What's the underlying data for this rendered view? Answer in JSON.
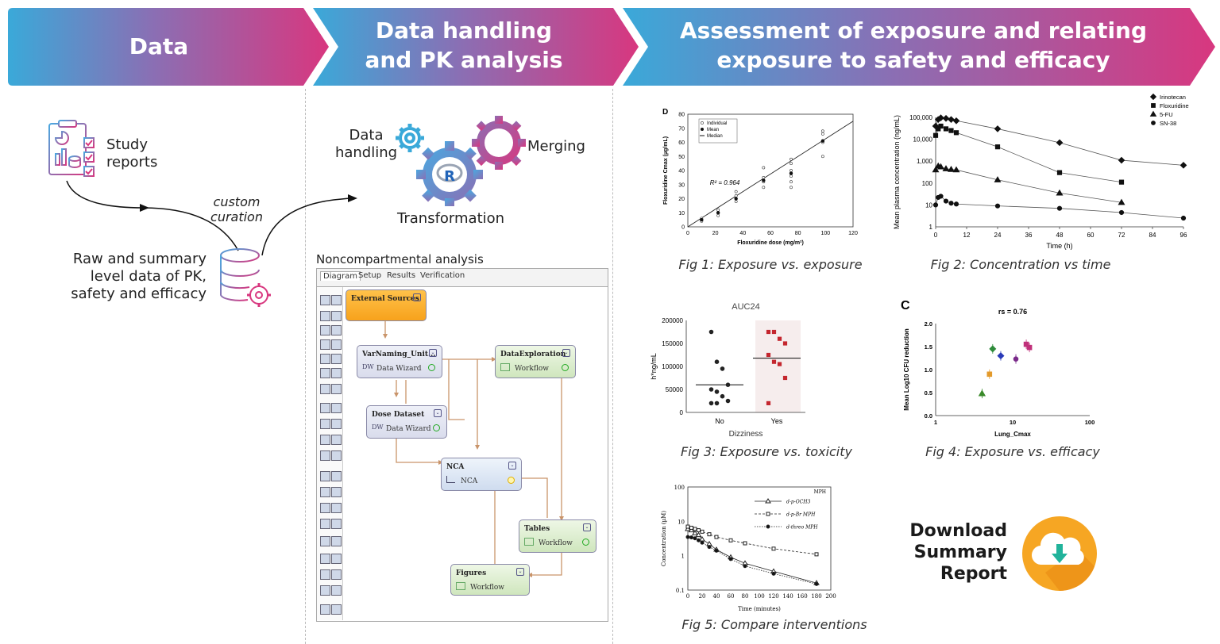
{
  "banner": {
    "section1": "Data",
    "section2_line1": "Data handling",
    "section2_line2": "and PK analysis",
    "section3_line1": "Assessment of exposure and relating",
    "section3_line2": "exposure to safety and efficacy",
    "colors": {
      "start": "#3aa9d9",
      "mid": "#8a6fb4",
      "end": "#d8377f"
    }
  },
  "data_column": {
    "study_reports": [
      "Study",
      "reports"
    ],
    "custom_curation": [
      "custom",
      "curation"
    ],
    "raw_data": [
      "Raw and summary",
      "level data of PK,",
      "safety and efficacy"
    ]
  },
  "handling_column": {
    "data_handling": [
      "Data",
      "handling"
    ],
    "merging": "Merging",
    "transformation": "Transformation",
    "r_logo": "R",
    "nca_title": "Noncompartmental analysis",
    "tabs": [
      "Diagram",
      "Setup",
      "Results",
      "Verification"
    ],
    "nodes": {
      "external": {
        "title": "External Sources"
      },
      "varnaming": {
        "title": "VarNaming_Unit...",
        "sub": "Data Wizard",
        "icon": "DW"
      },
      "dataexplore": {
        "title": "DataExploration",
        "sub": "Workflow"
      },
      "dose": {
        "title": "Dose Dataset",
        "sub": "Data Wizard",
        "icon": "DW"
      },
      "nca": {
        "title": "NCA",
        "sub": "NCA"
      },
      "tables": {
        "title": "Tables",
        "sub": "Workflow"
      },
      "figures": {
        "title": "Figures",
        "sub": "Workflow"
      }
    }
  },
  "captions": {
    "fig1": "Fig 1: Exposure vs. exposure",
    "fig2": "Fig 2: Concentration vs time",
    "fig3": "Fig 3: Exposure vs. toxicity",
    "fig4": "Fig 4: Exposure vs. efficacy",
    "fig5": "Fig 5: Compare interventions"
  },
  "download": [
    "Download",
    "Summary",
    "Report"
  ],
  "chart_data": [
    {
      "type": "scatter",
      "panel_label": "D",
      "xlabel": "Floxuridine dose (mg/m²)",
      "ylabel": "Floxuridine Cmax (µg/mL)",
      "xlim": [
        0,
        120
      ],
      "ylim": [
        0,
        80
      ],
      "xticks": [
        0,
        20,
        40,
        60,
        80,
        100,
        120
      ],
      "yticks": [
        0,
        10,
        20,
        30,
        40,
        50,
        60,
        70,
        80
      ],
      "annotation": "R² = 0.964",
      "legend": [
        "Individual",
        "Mean",
        "Median"
      ],
      "individual_points": [
        [
          10,
          4
        ],
        [
          10,
          6
        ],
        [
          22,
          8
        ],
        [
          22,
          10
        ],
        [
          22,
          12
        ],
        [
          35,
          18
        ],
        [
          35,
          22
        ],
        [
          35,
          25
        ],
        [
          55,
          28
        ],
        [
          55,
          32
        ],
        [
          55,
          35
        ],
        [
          55,
          42
        ],
        [
          75,
          28
        ],
        [
          75,
          32
        ],
        [
          75,
          36
        ],
        [
          75,
          40
        ],
        [
          75,
          45
        ],
        [
          75,
          48
        ],
        [
          98,
          50
        ],
        [
          98,
          60
        ],
        [
          98,
          66
        ],
        [
          98,
          68
        ]
      ],
      "mean_points": [
        [
          10,
          5
        ],
        [
          22,
          10
        ],
        [
          35,
          20
        ],
        [
          55,
          33
        ],
        [
          75,
          38
        ],
        [
          98,
          61
        ]
      ],
      "fit_line": [
        [
          0,
          0
        ],
        [
          120,
          75
        ]
      ]
    },
    {
      "type": "line",
      "xlabel": "Time (h)",
      "ylabel": "Mean plasma concentration (ng/mL)",
      "xticks": [
        0,
        12,
        24,
        36,
        48,
        60,
        72,
        84,
        96
      ],
      "yticks": [
        "1",
        "10",
        "100",
        "1,000",
        "10,000",
        "100,000"
      ],
      "ylog": true,
      "series": [
        {
          "name": "Irinotecan",
          "marker": "diamond",
          "points": [
            [
              0,
              40000
            ],
            [
              1,
              80000
            ],
            [
              2,
              95000
            ],
            [
              4,
              90000
            ],
            [
              6,
              80000
            ],
            [
              8,
              70000
            ],
            [
              24,
              30000
            ],
            [
              48,
              7000
            ],
            [
              72,
              1100
            ],
            [
              96,
              650
            ]
          ]
        },
        {
          "name": "Floxuridine",
          "marker": "square",
          "points": [
            [
              0,
              15000
            ],
            [
              1,
              30000
            ],
            [
              2,
              40000
            ],
            [
              4,
              30000
            ],
            [
              6,
              25000
            ],
            [
              8,
              20000
            ],
            [
              24,
              4500
            ],
            [
              48,
              300
            ],
            [
              72,
              110
            ]
          ]
        },
        {
          "name": "5-FU",
          "marker": "triangle",
          "points": [
            [
              0,
              400
            ],
            [
              1,
              600
            ],
            [
              2,
              550
            ],
            [
              4,
              450
            ],
            [
              6,
              420
            ],
            [
              8,
              400
            ],
            [
              24,
              140
            ],
            [
              48,
              35
            ],
            [
              72,
              13
            ]
          ]
        },
        {
          "name": "SN-38",
          "marker": "circle",
          "points": [
            [
              0,
              10
            ],
            [
              1,
              22
            ],
            [
              2,
              25
            ],
            [
              4,
              15
            ],
            [
              6,
              12
            ],
            [
              8,
              11
            ],
            [
              24,
              9
            ],
            [
              48,
              7
            ],
            [
              72,
              4.5
            ],
            [
              96,
              2.5
            ]
          ]
        }
      ]
    },
    {
      "type": "scatter",
      "title": "AUC24",
      "xlabel": "Dizziness",
      "ylabel": "h*ng/mL",
      "categories": [
        "No",
        "Yes"
      ],
      "ylim": [
        0,
        200000
      ],
      "yticks": [
        "0",
        "50000",
        "100000",
        "150000",
        "200000"
      ],
      "series": [
        {
          "name": "No",
          "values": [
            175000,
            110000,
            95000,
            60000,
            50000,
            45000,
            35000,
            25000,
            20000,
            20000
          ],
          "median": 60000
        },
        {
          "name": "Yes",
          "values": [
            175000,
            175000,
            160000,
            150000,
            125000,
            110000,
            105000,
            75000,
            20000
          ],
          "median": 118000
        }
      ]
    },
    {
      "type": "scatter",
      "panel_label": "C",
      "annotation": "rs = 0.76",
      "xlabel": "Lung_Cmax",
      "ylabel": "Mean Log10 CFU reduction",
      "xlog": true,
      "xticks": [
        "1",
        "10",
        "100"
      ],
      "yticks": [
        "0.0",
        "0.5",
        "1.0",
        "1.5",
        "2.0"
      ],
      "points": [
        {
          "x": 4,
          "y": 0.48,
          "color": "#3a8a2a",
          "marker": "triangle"
        },
        {
          "x": 5,
          "y": 0.9,
          "color": "#e39a2b",
          "marker": "square"
        },
        {
          "x": 5.5,
          "y": 1.45,
          "color": "#2e8b3a",
          "marker": "diamond"
        },
        {
          "x": 7,
          "y": 1.3,
          "color": "#2a3ab8",
          "marker": "diamond"
        },
        {
          "x": 11,
          "y": 1.23,
          "color": "#7a2a8a",
          "marker": "circle"
        },
        {
          "x": 15,
          "y": 1.55,
          "color": "#c0307a",
          "marker": "square"
        },
        {
          "x": 16.5,
          "y": 1.48,
          "color": "#c0307a",
          "marker": "square"
        }
      ]
    },
    {
      "type": "line",
      "xlabel": "Time (minutes)",
      "ylabel": "Concentration (µM)",
      "ylog": true,
      "xticks": [
        0,
        20,
        40,
        60,
        80,
        100,
        120,
        140,
        160,
        180,
        200
      ],
      "yticks": [
        "0.1",
        "1",
        "10",
        "100"
      ],
      "legend_title": "MPH",
      "series": [
        {
          "name": "d-p-OCH3",
          "marker": "triangle",
          "points": [
            [
              0,
              6
            ],
            [
              5,
              5.5
            ],
            [
              10,
              4.5
            ],
            [
              15,
              4
            ],
            [
              20,
              3
            ],
            [
              30,
              2.2
            ],
            [
              40,
              1.5
            ],
            [
              60,
              0.9
            ],
            [
              80,
              0.6
            ],
            [
              120,
              0.35
            ],
            [
              180,
              0.16
            ]
          ]
        },
        {
          "name": "d-p-Br MPH",
          "marker": "square",
          "points": [
            [
              0,
              7
            ],
            [
              5,
              6.5
            ],
            [
              10,
              6
            ],
            [
              15,
              5.5
            ],
            [
              20,
              5
            ],
            [
              30,
              4.2
            ],
            [
              40,
              3.5
            ],
            [
              60,
              2.8
            ],
            [
              80,
              2.3
            ],
            [
              120,
              1.6
            ],
            [
              180,
              1.1
            ]
          ]
        },
        {
          "name": "d-threo MPH",
          "marker": "circle",
          "points": [
            [
              0,
              3.5
            ],
            [
              5,
              3.4
            ],
            [
              10,
              3.2
            ],
            [
              15,
              2.8
            ],
            [
              20,
              2.4
            ],
            [
              30,
              1.8
            ],
            [
              40,
              1.4
            ],
            [
              60,
              0.8
            ],
            [
              80,
              0.5
            ],
            [
              120,
              0.3
            ],
            [
              180,
              0.15
            ]
          ]
        }
      ]
    }
  ]
}
